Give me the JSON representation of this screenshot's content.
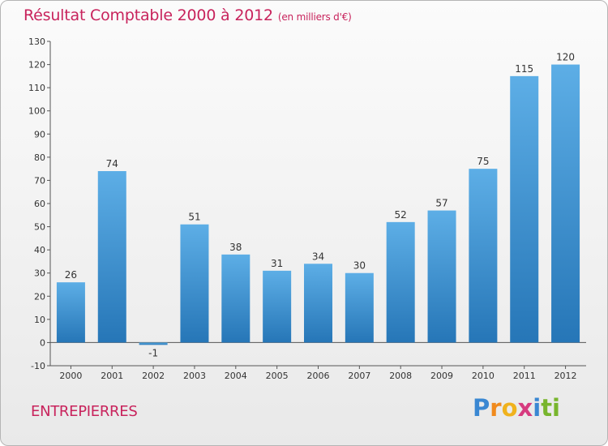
{
  "header": {
    "title": "Résultat Comptable 2000 à 2012",
    "unit": "(en milliers d'€)"
  },
  "footer": {
    "place": "ENTREPIERRES",
    "logo_letters": [
      "P",
      "r",
      "o",
      "x",
      "i",
      "ti"
    ]
  },
  "colors": {
    "bar_top": "#5daee6",
    "bar_bottom": "#2676b7",
    "title": "#c8235c"
  },
  "chart_data": {
    "type": "bar",
    "title": "Résultat Comptable 2000 à 2012",
    "xlabel": "",
    "ylabel": "",
    "categories": [
      "2000",
      "2001",
      "2002",
      "2003",
      "2004",
      "2005",
      "2006",
      "2007",
      "2008",
      "2009",
      "2010",
      "2011",
      "2012"
    ],
    "values": [
      26,
      74,
      -1,
      51,
      38,
      31,
      34,
      30,
      52,
      57,
      75,
      115,
      120
    ],
    "ylim": [
      -10,
      130
    ],
    "yticks": [
      -10,
      0,
      10,
      20,
      30,
      40,
      50,
      60,
      70,
      80,
      90,
      100,
      110,
      120,
      130
    ],
    "grid": false,
    "legend": "none"
  }
}
